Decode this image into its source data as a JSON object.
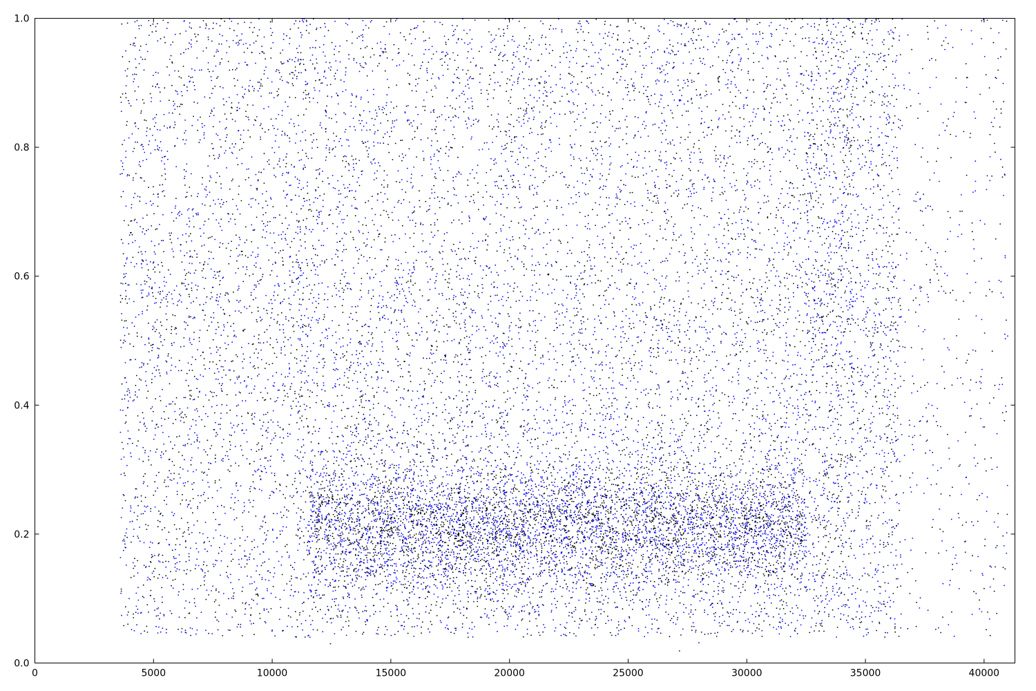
{
  "chart_data": {
    "type": "scatter",
    "title": "",
    "xlabel": "",
    "ylabel": "",
    "xlim": [
      0,
      41300
    ],
    "ylim": [
      0,
      1.0
    ],
    "grid": false,
    "legend": "none",
    "x_ticks": [
      0,
      5000,
      10000,
      15000,
      20000,
      25000,
      30000,
      35000,
      40000
    ],
    "x_tick_labels": [
      "0",
      "5000",
      "10000",
      "15000",
      "20000",
      "25000",
      "30000",
      "35000",
      "40000"
    ],
    "y_ticks": [
      0.0,
      0.2,
      0.4,
      0.6,
      0.8,
      1.0
    ],
    "y_tick_labels": [
      "0.0",
      "0.2",
      "0.4",
      "0.6",
      "0.8",
      "1.0"
    ],
    "series": [
      {
        "color": "#0000ff",
        "distribution": {
          "x_range": [
            3600,
            41000
          ],
          "points": 9500,
          "band_center_y": 0.21,
          "dense_x_range": [
            11000,
            34500
          ]
        }
      },
      {
        "color": "#000000",
        "distribution": {
          "x_range": [
            3600,
            41000
          ],
          "points": 8500,
          "band_center_y": 0.21,
          "dense_x_range": [
            11000,
            34500
          ]
        }
      }
    ]
  }
}
